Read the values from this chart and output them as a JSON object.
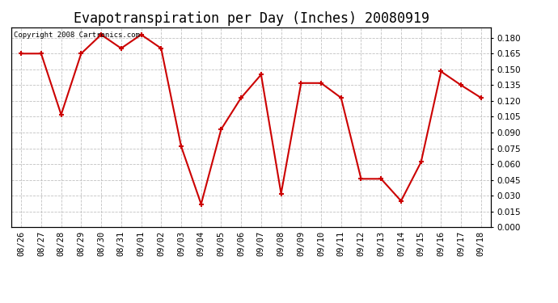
{
  "title": "Evapotranspiration per Day (Inches) 20080919",
  "copyright_text": "Copyright 2008 Cartronics.com",
  "dates": [
    "08/26",
    "08/27",
    "08/28",
    "08/29",
    "08/30",
    "08/31",
    "09/01",
    "09/02",
    "09/03",
    "09/04",
    "09/05",
    "09/06",
    "09/07",
    "09/08",
    "09/09",
    "09/10",
    "09/11",
    "09/12",
    "09/13",
    "09/14",
    "09/15",
    "09/16",
    "09/17",
    "09/18"
  ],
  "values": [
    0.165,
    0.165,
    0.107,
    0.165,
    0.183,
    0.17,
    0.183,
    0.17,
    0.077,
    0.022,
    0.093,
    0.123,
    0.145,
    0.032,
    0.137,
    0.137,
    0.123,
    0.046,
    0.046,
    0.025,
    0.062,
    0.148,
    0.135,
    0.123
  ],
  "line_color": "#cc0000",
  "marker": "+",
  "marker_size": 5,
  "marker_linewidth": 1.5,
  "line_width": 1.5,
  "ylim": [
    0.0,
    0.19
  ],
  "yticks": [
    0.0,
    0.015,
    0.03,
    0.045,
    0.06,
    0.075,
    0.09,
    0.105,
    0.12,
    0.135,
    0.15,
    0.165,
    0.18
  ],
  "background_color": "#ffffff",
  "plot_bg_color": "#ffffff",
  "grid_color": "#bbbbbb",
  "title_fontsize": 12,
  "tick_fontsize": 7.5,
  "copyright_fontsize": 6.5,
  "fig_width": 6.9,
  "fig_height": 3.75,
  "dpi": 100
}
